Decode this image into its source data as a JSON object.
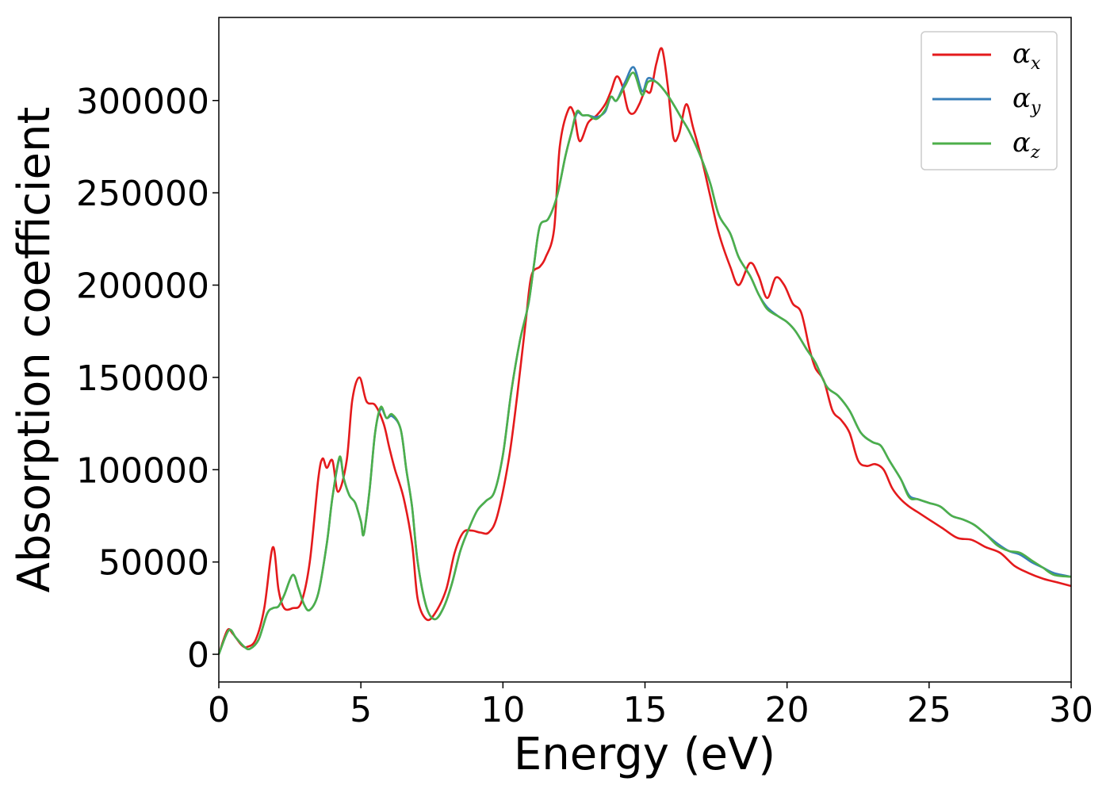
{
  "chart_data": {
    "type": "line",
    "title": "",
    "xlabel": "Energy (eV)",
    "ylabel": "Absorption coefficient",
    "xlim": [
      0,
      30
    ],
    "ylim": [
      -15000,
      345000
    ],
    "xticks": [
      0,
      5,
      10,
      15,
      20,
      25,
      30
    ],
    "yticks": [
      0,
      50000,
      100000,
      150000,
      200000,
      250000,
      300000
    ],
    "grid": false,
    "legend_position": "top-right",
    "series": [
      {
        "name": "α_x",
        "symbol": "α",
        "subscript": "x",
        "color": "#e41a1c",
        "points": [
          [
            0,
            0
          ],
          [
            0.3,
            13000
          ],
          [
            0.5,
            11000
          ],
          [
            0.8,
            5000
          ],
          [
            1.0,
            4000
          ],
          [
            1.3,
            8000
          ],
          [
            1.6,
            25000
          ],
          [
            1.9,
            58000
          ],
          [
            2.1,
            35000
          ],
          [
            2.3,
            25000
          ],
          [
            2.6,
            25000
          ],
          [
            2.9,
            28000
          ],
          [
            3.2,
            50000
          ],
          [
            3.5,
            95000
          ],
          [
            3.65,
            106000
          ],
          [
            3.8,
            101000
          ],
          [
            4.0,
            105000
          ],
          [
            4.2,
            88000
          ],
          [
            4.5,
            105000
          ],
          [
            4.7,
            138000
          ],
          [
            4.95,
            150000
          ],
          [
            5.2,
            137000
          ],
          [
            5.5,
            135000
          ],
          [
            5.8,
            125000
          ],
          [
            6.0,
            112000
          ],
          [
            6.2,
            100000
          ],
          [
            6.5,
            85000
          ],
          [
            6.8,
            60000
          ],
          [
            7.0,
            30000
          ],
          [
            7.3,
            19000
          ],
          [
            7.6,
            22000
          ],
          [
            8.0,
            35000
          ],
          [
            8.3,
            55000
          ],
          [
            8.6,
            66000
          ],
          [
            8.9,
            67000
          ],
          [
            9.2,
            66000
          ],
          [
            9.5,
            66000
          ],
          [
            9.8,
            75000
          ],
          [
            10.2,
            105000
          ],
          [
            10.5,
            140000
          ],
          [
            10.8,
            180000
          ],
          [
            11.0,
            205000
          ],
          [
            11.3,
            210000
          ],
          [
            11.5,
            215000
          ],
          [
            11.8,
            230000
          ],
          [
            12.0,
            275000
          ],
          [
            12.3,
            295000
          ],
          [
            12.5,
            293000
          ],
          [
            12.7,
            278000
          ],
          [
            13.0,
            288000
          ],
          [
            13.3,
            292000
          ],
          [
            13.6,
            298000
          ],
          [
            13.8,
            305000
          ],
          [
            14.0,
            313000
          ],
          [
            14.2,
            308000
          ],
          [
            14.4,
            295000
          ],
          [
            14.6,
            293000
          ],
          [
            14.8,
            298000
          ],
          [
            15.0,
            305000
          ],
          [
            15.2,
            305000
          ],
          [
            15.4,
            320000
          ],
          [
            15.6,
            328000
          ],
          [
            15.8,
            308000
          ],
          [
            16.0,
            280000
          ],
          [
            16.2,
            282000
          ],
          [
            16.45,
            298000
          ],
          [
            16.7,
            285000
          ],
          [
            17.0,
            268000
          ],
          [
            17.3,
            248000
          ],
          [
            17.6,
            228000
          ],
          [
            18.0,
            210000
          ],
          [
            18.3,
            200000
          ],
          [
            18.7,
            212000
          ],
          [
            19.0,
            205000
          ],
          [
            19.3,
            193000
          ],
          [
            19.6,
            204000
          ],
          [
            19.9,
            200000
          ],
          [
            20.2,
            190000
          ],
          [
            20.5,
            185000
          ],
          [
            20.8,
            165000
          ],
          [
            21.0,
            155000
          ],
          [
            21.3,
            148000
          ],
          [
            21.6,
            132000
          ],
          [
            21.9,
            127000
          ],
          [
            22.2,
            120000
          ],
          [
            22.5,
            105000
          ],
          [
            22.8,
            102000
          ],
          [
            23.1,
            103000
          ],
          [
            23.4,
            100000
          ],
          [
            23.7,
            90000
          ],
          [
            24.0,
            84000
          ],
          [
            24.3,
            80000
          ],
          [
            24.6,
            77000
          ],
          [
            25.0,
            73000
          ],
          [
            25.5,
            68000
          ],
          [
            26.0,
            63000
          ],
          [
            26.5,
            62000
          ],
          [
            27.0,
            58000
          ],
          [
            27.5,
            55000
          ],
          [
            28.0,
            48000
          ],
          [
            28.5,
            44000
          ],
          [
            29.0,
            41000
          ],
          [
            29.5,
            39000
          ],
          [
            30.0,
            37000
          ]
        ]
      },
      {
        "name": "α_y",
        "symbol": "α",
        "subscript": "y",
        "color": "#377eb8",
        "points": [
          [
            0,
            0
          ],
          [
            0.35,
            13000
          ],
          [
            0.6,
            9000
          ],
          [
            0.9,
            4000
          ],
          [
            1.1,
            3000
          ],
          [
            1.4,
            8000
          ],
          [
            1.7,
            22000
          ],
          [
            1.9,
            25000
          ],
          [
            2.1,
            26000
          ],
          [
            2.3,
            32000
          ],
          [
            2.6,
            43000
          ],
          [
            2.8,
            36000
          ],
          [
            3.0,
            27000
          ],
          [
            3.2,
            24000
          ],
          [
            3.5,
            33000
          ],
          [
            3.8,
            60000
          ],
          [
            4.0,
            85000
          ],
          [
            4.25,
            106000
          ],
          [
            4.4,
            95000
          ],
          [
            4.6,
            86000
          ],
          [
            4.8,
            82000
          ],
          [
            5.0,
            72000
          ],
          [
            5.1,
            65000
          ],
          [
            5.3,
            88000
          ],
          [
            5.5,
            120000
          ],
          [
            5.7,
            133000
          ],
          [
            5.9,
            128000
          ],
          [
            6.1,
            129000
          ],
          [
            6.4,
            122000
          ],
          [
            6.6,
            100000
          ],
          [
            6.8,
            80000
          ],
          [
            7.0,
            50000
          ],
          [
            7.3,
            26000
          ],
          [
            7.6,
            19000
          ],
          [
            7.9,
            25000
          ],
          [
            8.2,
            38000
          ],
          [
            8.5,
            56000
          ],
          [
            8.8,
            68000
          ],
          [
            9.1,
            78000
          ],
          [
            9.4,
            83000
          ],
          [
            9.7,
            88000
          ],
          [
            10.0,
            108000
          ],
          [
            10.3,
            143000
          ],
          [
            10.6,
            170000
          ],
          [
            10.9,
            190000
          ],
          [
            11.1,
            212000
          ],
          [
            11.3,
            232000
          ],
          [
            11.6,
            236000
          ],
          [
            11.9,
            248000
          ],
          [
            12.2,
            270000
          ],
          [
            12.4,
            282000
          ],
          [
            12.6,
            293000
          ],
          [
            12.8,
            292000
          ],
          [
            13.0,
            292000
          ],
          [
            13.3,
            291000
          ],
          [
            13.6,
            294000
          ],
          [
            13.8,
            302000
          ],
          [
            14.0,
            300000
          ],
          [
            14.3,
            310000
          ],
          [
            14.6,
            318000
          ],
          [
            14.9,
            305000
          ],
          [
            15.1,
            312000
          ],
          [
            15.4,
            310000
          ],
          [
            15.7,
            305000
          ],
          [
            16.0,
            298000
          ],
          [
            16.3,
            290000
          ],
          [
            16.6,
            282000
          ],
          [
            17.0,
            268000
          ],
          [
            17.3,
            255000
          ],
          [
            17.6,
            238000
          ],
          [
            18.0,
            228000
          ],
          [
            18.3,
            215000
          ],
          [
            18.7,
            205000
          ],
          [
            19.0,
            195000
          ],
          [
            19.3,
            188000
          ],
          [
            19.7,
            183000
          ],
          [
            20.0,
            180000
          ],
          [
            20.3,
            175000
          ],
          [
            20.7,
            165000
          ],
          [
            21.0,
            158000
          ],
          [
            21.4,
            145000
          ],
          [
            21.8,
            140000
          ],
          [
            22.2,
            132000
          ],
          [
            22.6,
            120000
          ],
          [
            23.0,
            115000
          ],
          [
            23.3,
            113000
          ],
          [
            23.6,
            105000
          ],
          [
            24.0,
            95000
          ],
          [
            24.3,
            86000
          ],
          [
            24.6,
            84000
          ],
          [
            25.0,
            82000
          ],
          [
            25.4,
            80000
          ],
          [
            25.8,
            75000
          ],
          [
            26.2,
            73000
          ],
          [
            26.6,
            70000
          ],
          [
            27.0,
            65000
          ],
          [
            27.4,
            60000
          ],
          [
            27.8,
            56000
          ],
          [
            28.2,
            54000
          ],
          [
            28.6,
            50000
          ],
          [
            29.0,
            47000
          ],
          [
            29.4,
            44000
          ],
          [
            30.0,
            42000
          ]
        ]
      },
      {
        "name": "α_z",
        "symbol": "α",
        "subscript": "z",
        "color": "#4daf4a",
        "points": [
          [
            0,
            0
          ],
          [
            0.35,
            13000
          ],
          [
            0.6,
            9000
          ],
          [
            0.9,
            4000
          ],
          [
            1.1,
            3000
          ],
          [
            1.4,
            8000
          ],
          [
            1.7,
            22000
          ],
          [
            1.9,
            25000
          ],
          [
            2.1,
            26000
          ],
          [
            2.3,
            32000
          ],
          [
            2.6,
            43000
          ],
          [
            2.8,
            36000
          ],
          [
            3.0,
            27000
          ],
          [
            3.2,
            24000
          ],
          [
            3.5,
            33000
          ],
          [
            3.8,
            60000
          ],
          [
            4.0,
            85000
          ],
          [
            4.25,
            107000
          ],
          [
            4.4,
            95000
          ],
          [
            4.6,
            86000
          ],
          [
            4.8,
            82000
          ],
          [
            5.0,
            72000
          ],
          [
            5.1,
            65000
          ],
          [
            5.3,
            88000
          ],
          [
            5.5,
            120000
          ],
          [
            5.7,
            134000
          ],
          [
            5.9,
            128000
          ],
          [
            6.1,
            130000
          ],
          [
            6.4,
            122000
          ],
          [
            6.6,
            100000
          ],
          [
            6.8,
            80000
          ],
          [
            7.0,
            50000
          ],
          [
            7.3,
            26000
          ],
          [
            7.6,
            19000
          ],
          [
            7.9,
            25000
          ],
          [
            8.2,
            38000
          ],
          [
            8.5,
            56000
          ],
          [
            8.8,
            68000
          ],
          [
            9.1,
            78000
          ],
          [
            9.4,
            83000
          ],
          [
            9.7,
            88000
          ],
          [
            10.0,
            108000
          ],
          [
            10.3,
            143000
          ],
          [
            10.6,
            170000
          ],
          [
            10.9,
            190000
          ],
          [
            11.1,
            212000
          ],
          [
            11.3,
            232000
          ],
          [
            11.6,
            236000
          ],
          [
            11.9,
            248000
          ],
          [
            12.2,
            270000
          ],
          [
            12.4,
            282000
          ],
          [
            12.6,
            294000
          ],
          [
            12.8,
            292000
          ],
          [
            13.0,
            292000
          ],
          [
            13.3,
            290000
          ],
          [
            13.6,
            295000
          ],
          [
            13.8,
            302000
          ],
          [
            14.0,
            300000
          ],
          [
            14.3,
            308000
          ],
          [
            14.6,
            315000
          ],
          [
            14.9,
            303000
          ],
          [
            15.1,
            310000
          ],
          [
            15.4,
            310000
          ],
          [
            15.7,
            305000
          ],
          [
            16.0,
            298000
          ],
          [
            16.3,
            290000
          ],
          [
            16.6,
            282000
          ],
          [
            17.0,
            268000
          ],
          [
            17.3,
            255000
          ],
          [
            17.6,
            238000
          ],
          [
            18.0,
            228000
          ],
          [
            18.3,
            215000
          ],
          [
            18.7,
            205000
          ],
          [
            19.0,
            195000
          ],
          [
            19.3,
            187000
          ],
          [
            19.7,
            183000
          ],
          [
            20.0,
            180000
          ],
          [
            20.3,
            175000
          ],
          [
            20.7,
            165000
          ],
          [
            21.0,
            158000
          ],
          [
            21.4,
            145000
          ],
          [
            21.8,
            140000
          ],
          [
            22.2,
            132000
          ],
          [
            22.6,
            120000
          ],
          [
            23.0,
            115000
          ],
          [
            23.3,
            113000
          ],
          [
            23.6,
            105000
          ],
          [
            24.0,
            95000
          ],
          [
            24.3,
            85000
          ],
          [
            24.6,
            84000
          ],
          [
            25.0,
            82000
          ],
          [
            25.4,
            80000
          ],
          [
            25.8,
            75000
          ],
          [
            26.2,
            73000
          ],
          [
            26.6,
            70000
          ],
          [
            27.0,
            65000
          ],
          [
            27.4,
            59000
          ],
          [
            27.8,
            56000
          ],
          [
            28.2,
            55000
          ],
          [
            28.6,
            51000
          ],
          [
            29.0,
            47000
          ],
          [
            29.4,
            43000
          ],
          [
            30.0,
            42000
          ]
        ]
      }
    ]
  }
}
